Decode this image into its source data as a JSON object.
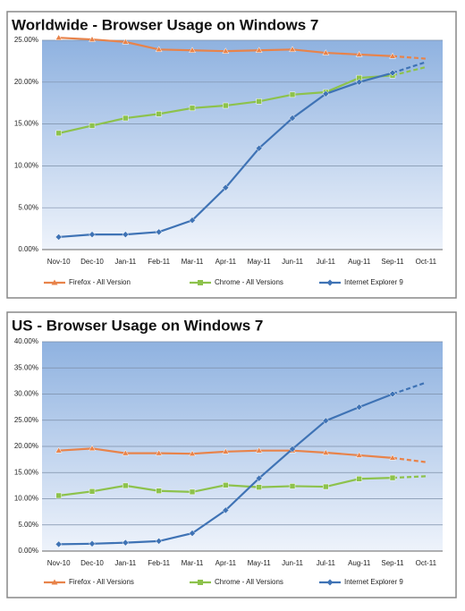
{
  "chart_data": [
    {
      "type": "line",
      "title": "Worldwide - Browser Usage on Windows 7",
      "categories": [
        "Nov-10",
        "Dec-10",
        "Jan-11",
        "Feb-11",
        "Mar-11",
        "Apr-11",
        "May-11",
        "Jun-11",
        "Jul-11",
        "Aug-11",
        "Sep-11",
        "Oct-11"
      ],
      "ylim": [
        0,
        25
      ],
      "yticks": [
        {
          "value": 0,
          "label": "0.00%"
        },
        {
          "value": 5,
          "label": "5.00%"
        },
        {
          "value": 10,
          "label": "10.00%"
        },
        {
          "value": 15,
          "label": "15.00%"
        },
        {
          "value": 20,
          "label": "20.00%"
        },
        {
          "value": 25,
          "label": "25.00%"
        }
      ],
      "grid": true,
      "legend": "bottom",
      "dashed_last_segment": true,
      "series": [
        {
          "name": "Firefox - All Version",
          "color": "#e8834a",
          "marker": "triangle",
          "values": [
            25.3,
            25.1,
            24.8,
            23.9,
            23.8,
            23.7,
            23.8,
            23.9,
            23.5,
            23.3,
            23.1,
            22.8
          ]
        },
        {
          "name": "Chrome - All Versions",
          "color": "#8dc24c",
          "marker": "square",
          "values": [
            13.9,
            14.8,
            15.7,
            16.2,
            16.9,
            17.2,
            17.7,
            18.5,
            18.8,
            20.5,
            20.8,
            21.8
          ]
        },
        {
          "name": "Internet Explorer 9",
          "color": "#3f73b5",
          "marker": "diamond",
          "values": [
            1.5,
            1.8,
            1.8,
            2.1,
            3.5,
            7.4,
            12.1,
            15.7,
            18.6,
            20.0,
            21.1,
            22.4
          ]
        }
      ]
    },
    {
      "type": "line",
      "title": "US - Browser Usage on Windows 7",
      "categories": [
        "Nov-10",
        "Dec-10",
        "Jan-11",
        "Feb-11",
        "Mar-11",
        "Apr-11",
        "May-11",
        "Jun-11",
        "Jul-11",
        "Aug-11",
        "Sep-11",
        "Oct-11"
      ],
      "ylim": [
        0,
        40
      ],
      "yticks": [
        {
          "value": 0,
          "label": "0.00%"
        },
        {
          "value": 5,
          "label": "5.00%"
        },
        {
          "value": 10,
          "label": "10.00%"
        },
        {
          "value": 15,
          "label": "15.00%"
        },
        {
          "value": 20,
          "label": "20.00%"
        },
        {
          "value": 25,
          "label": "25.00%"
        },
        {
          "value": 30,
          "label": "30.00%"
        },
        {
          "value": 35,
          "label": "35.00%"
        },
        {
          "value": 40,
          "label": "40.00%"
        }
      ],
      "grid": true,
      "legend": "bottom",
      "dashed_last_segment": true,
      "series": [
        {
          "name": "Firefox - All Versions",
          "color": "#e8834a",
          "marker": "triangle",
          "values": [
            19.2,
            19.6,
            18.7,
            18.7,
            18.6,
            19.0,
            19.2,
            19.2,
            18.8,
            18.3,
            17.8,
            17.0
          ]
        },
        {
          "name": "Chrome - All Versions",
          "color": "#8dc24c",
          "marker": "square",
          "values": [
            10.6,
            11.4,
            12.5,
            11.5,
            11.3,
            12.6,
            12.2,
            12.4,
            12.3,
            13.8,
            14.0,
            14.3
          ]
        },
        {
          "name": "Internet Explorer 9",
          "color": "#3f73b5",
          "marker": "diamond",
          "values": [
            1.3,
            1.4,
            1.6,
            1.9,
            3.4,
            7.8,
            13.9,
            19.5,
            24.9,
            27.5,
            30.0,
            32.2
          ]
        }
      ]
    }
  ]
}
